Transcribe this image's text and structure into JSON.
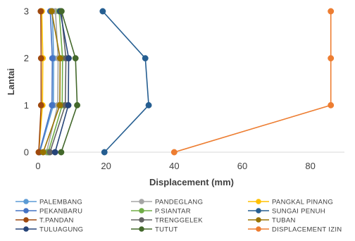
{
  "chart_data": {
    "type": "line",
    "xlabel": "Displacement (mm)",
    "ylabel": "Lantai",
    "xlim": [
      0,
      90
    ],
    "ylim": [
      0,
      3
    ],
    "x_ticks": [
      0,
      20,
      40,
      60,
      80
    ],
    "y_ticks": [
      0,
      1,
      2,
      3
    ],
    "grid": false,
    "legend_position": "bottom",
    "series": [
      {
        "name": "PALEMBANG",
        "color": "#5B9BD5",
        "x": [
          0.5,
          4.5,
          4.6,
          4.2
        ],
        "y": [
          0,
          1,
          2,
          3
        ]
      },
      {
        "name": "PANDEGLANG",
        "color": "#A5A5A5",
        "x": [
          2.5,
          5.8,
          5.9,
          5.1
        ],
        "y": [
          0,
          1,
          2,
          3
        ]
      },
      {
        "name": "PANGKAL PINANG",
        "color": "#FFC000",
        "x": [
          0.2,
          1.3,
          1.4,
          1.1
        ],
        "y": [
          0,
          1,
          2,
          3
        ]
      },
      {
        "name": "PEKANBARU",
        "color": "#4472C4",
        "x": [
          0.4,
          4.1,
          4.2,
          3.6
        ],
        "y": [
          0,
          1,
          2,
          3
        ]
      },
      {
        "name": "P.SIANTAR",
        "color": "#70AD47",
        "x": [
          3.0,
          7.1,
          7.2,
          6.2
        ],
        "y": [
          0,
          1,
          2,
          3
        ]
      },
      {
        "name": "SUNGAI PENUH",
        "color": "#255E91",
        "x": [
          19.5,
          32.5,
          31.5,
          19.0
        ],
        "y": [
          0,
          1,
          2,
          3
        ]
      },
      {
        "name": "T.PANDAN",
        "color": "#9E480E",
        "x": [
          0.2,
          0.9,
          0.9,
          0.8
        ],
        "y": [
          0,
          1,
          2,
          3
        ]
      },
      {
        "name": "TRENGGELEK",
        "color": "#636363",
        "x": [
          3.5,
          8.0,
          8.2,
          6.8
        ],
        "y": [
          0,
          1,
          2,
          3
        ]
      },
      {
        "name": "TUBAN",
        "color": "#997300",
        "x": [
          1.5,
          6.4,
          6.5,
          4.0
        ],
        "y": [
          0,
          1,
          2,
          3
        ]
      },
      {
        "name": "TULUAGUNG",
        "color": "#264478",
        "x": [
          5.0,
          8.9,
          9.0,
          6.5
        ],
        "y": [
          0,
          1,
          2,
          3
        ]
      },
      {
        "name": "TUTUT",
        "color": "#43682B",
        "x": [
          6.8,
          11.5,
          11.0,
          6.9
        ],
        "y": [
          0,
          1,
          2,
          3
        ]
      },
      {
        "name": "DISPLACEMENT IZIN",
        "color": "#ED7D31",
        "x": [
          40.0,
          86.0,
          86.0,
          86.0
        ],
        "y": [
          0,
          1,
          2,
          3
        ]
      }
    ]
  }
}
